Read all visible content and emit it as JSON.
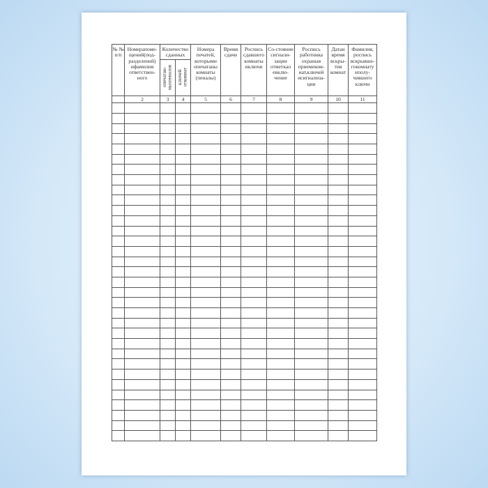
{
  "headers": [
    "№ № п/п",
    "Номерапоме-щений(под-разделений) ифамилия ответствен-ного",
    "Количество сданных",
    "Номера печатей, которыми опечатаны комнаты (пеналы)",
    "Время сдачи",
    "Роспись сдавшего комнаты иключи",
    "Со-стояние сигнали-зации отметкао евклю-чение",
    "Роспись работника охраныв приемеком-нат,ключей исигнализа-ции",
    "Датаи время вскры-тия комнат",
    "Фамилия, роспись вскрывше-гокомнату иполу-чившего ключи"
  ],
  "subheaders": [
    "опечатан-ныхпеналов",
    "ключей откомнат"
  ],
  "numbers": [
    "",
    "2",
    "3",
    "4",
    "5",
    "6",
    "7",
    "8",
    "9",
    "10",
    "11"
  ],
  "body_rows": 33
}
